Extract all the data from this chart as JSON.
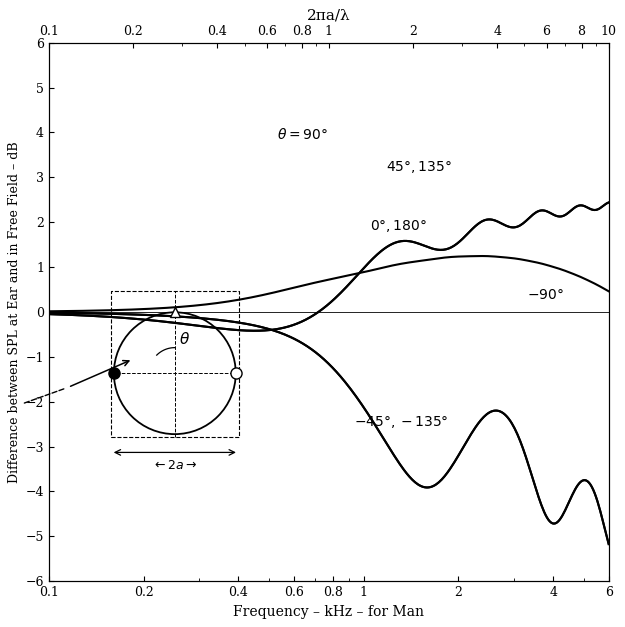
{
  "title_top": "2πa/λ",
  "xlabel": "Frequency – kHz – for Man",
  "ylabel": "Difference between SPL at Ear and in Free Field – dB",
  "xmin": 0.1,
  "xmax": 6.0,
  "ymin": -6,
  "ymax": 6,
  "line_color": "#000000",
  "background_color": "#ffffff"
}
